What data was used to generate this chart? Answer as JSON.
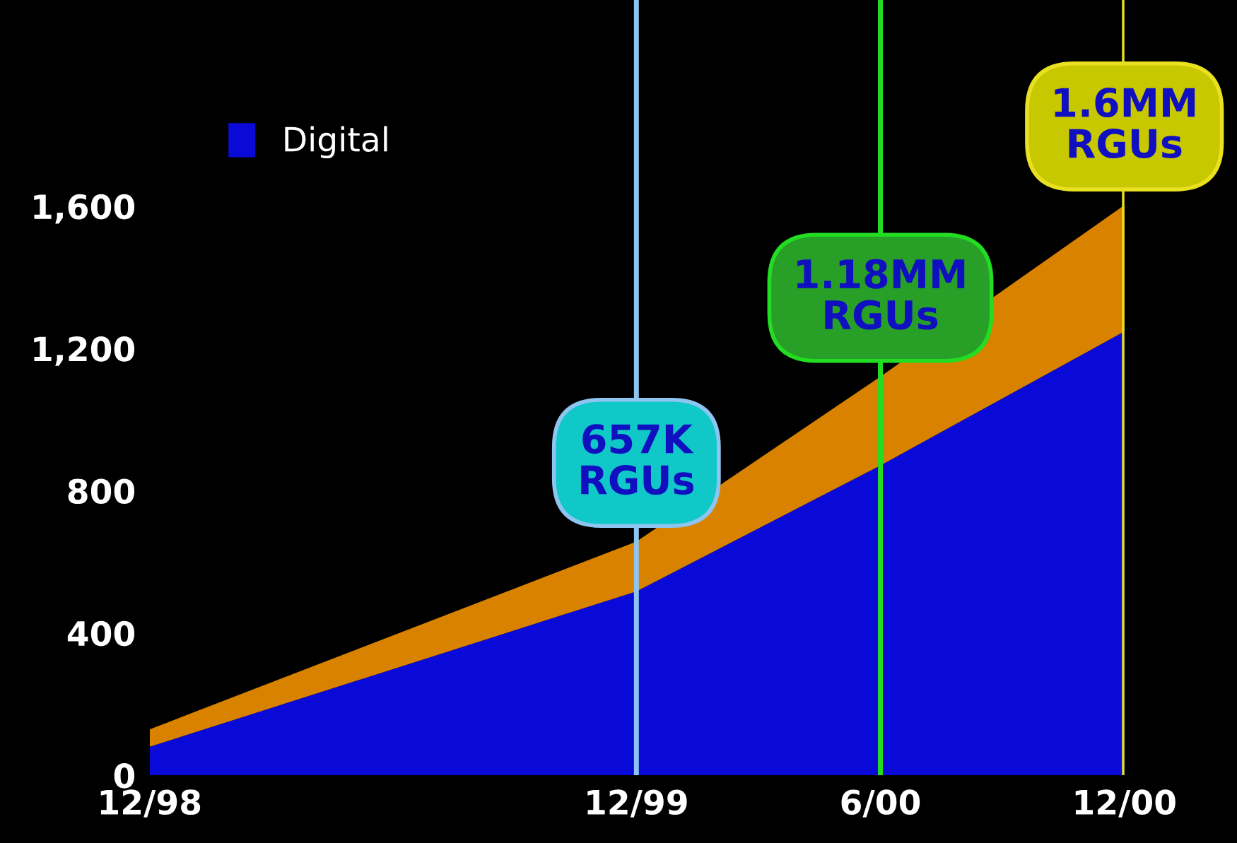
{
  "chart_data": {
    "type": "area",
    "stacked": true,
    "x": [
      "1998-12",
      "1999-12",
      "2000-06",
      "2000-12"
    ],
    "xlim": [
      "1998-12",
      "2000-12"
    ],
    "xticks": [
      {
        "value": "1998-12",
        "label": "12/98"
      },
      {
        "value": "1999-12",
        "label": "12/99"
      },
      {
        "value": "2000-06",
        "label": "6/00"
      },
      {
        "value": "2000-12",
        "label": "12/00"
      }
    ],
    "ylim": [
      0,
      2180
    ],
    "yticks": [
      0,
      400,
      800,
      {
        "value": 1200,
        "label": "1,200"
      },
      {
        "value": 1600,
        "label": "1,600"
      }
    ],
    "series": [
      {
        "name": "Digital",
        "color": "#0a0ad8",
        "values": [
          80,
          517,
          871,
          1248
        ]
      },
      {
        "color": "#d98200",
        "values": [
          49,
          140,
          250,
          355
        ]
      }
    ],
    "ref_lines": [
      {
        "axis": "x",
        "value": "1999-12",
        "color": "#8ec5f0"
      },
      {
        "axis": "x",
        "value": "2000-06",
        "color": "#22dd22"
      },
      {
        "axis": "x",
        "value": "2000-12",
        "color": "#e8e020"
      }
    ],
    "annotations": [
      {
        "text": "657K\nRGUs",
        "x": "1999-12",
        "y": 657
      },
      {
        "text": "1.18MM\nRGUs",
        "x": "2000-06",
        "y": 1121
      },
      {
        "text": "1.6MM\nRGUs",
        "x": "2000-12",
        "y": 1603
      }
    ],
    "legend": "top left",
    "grid": false
  }
}
